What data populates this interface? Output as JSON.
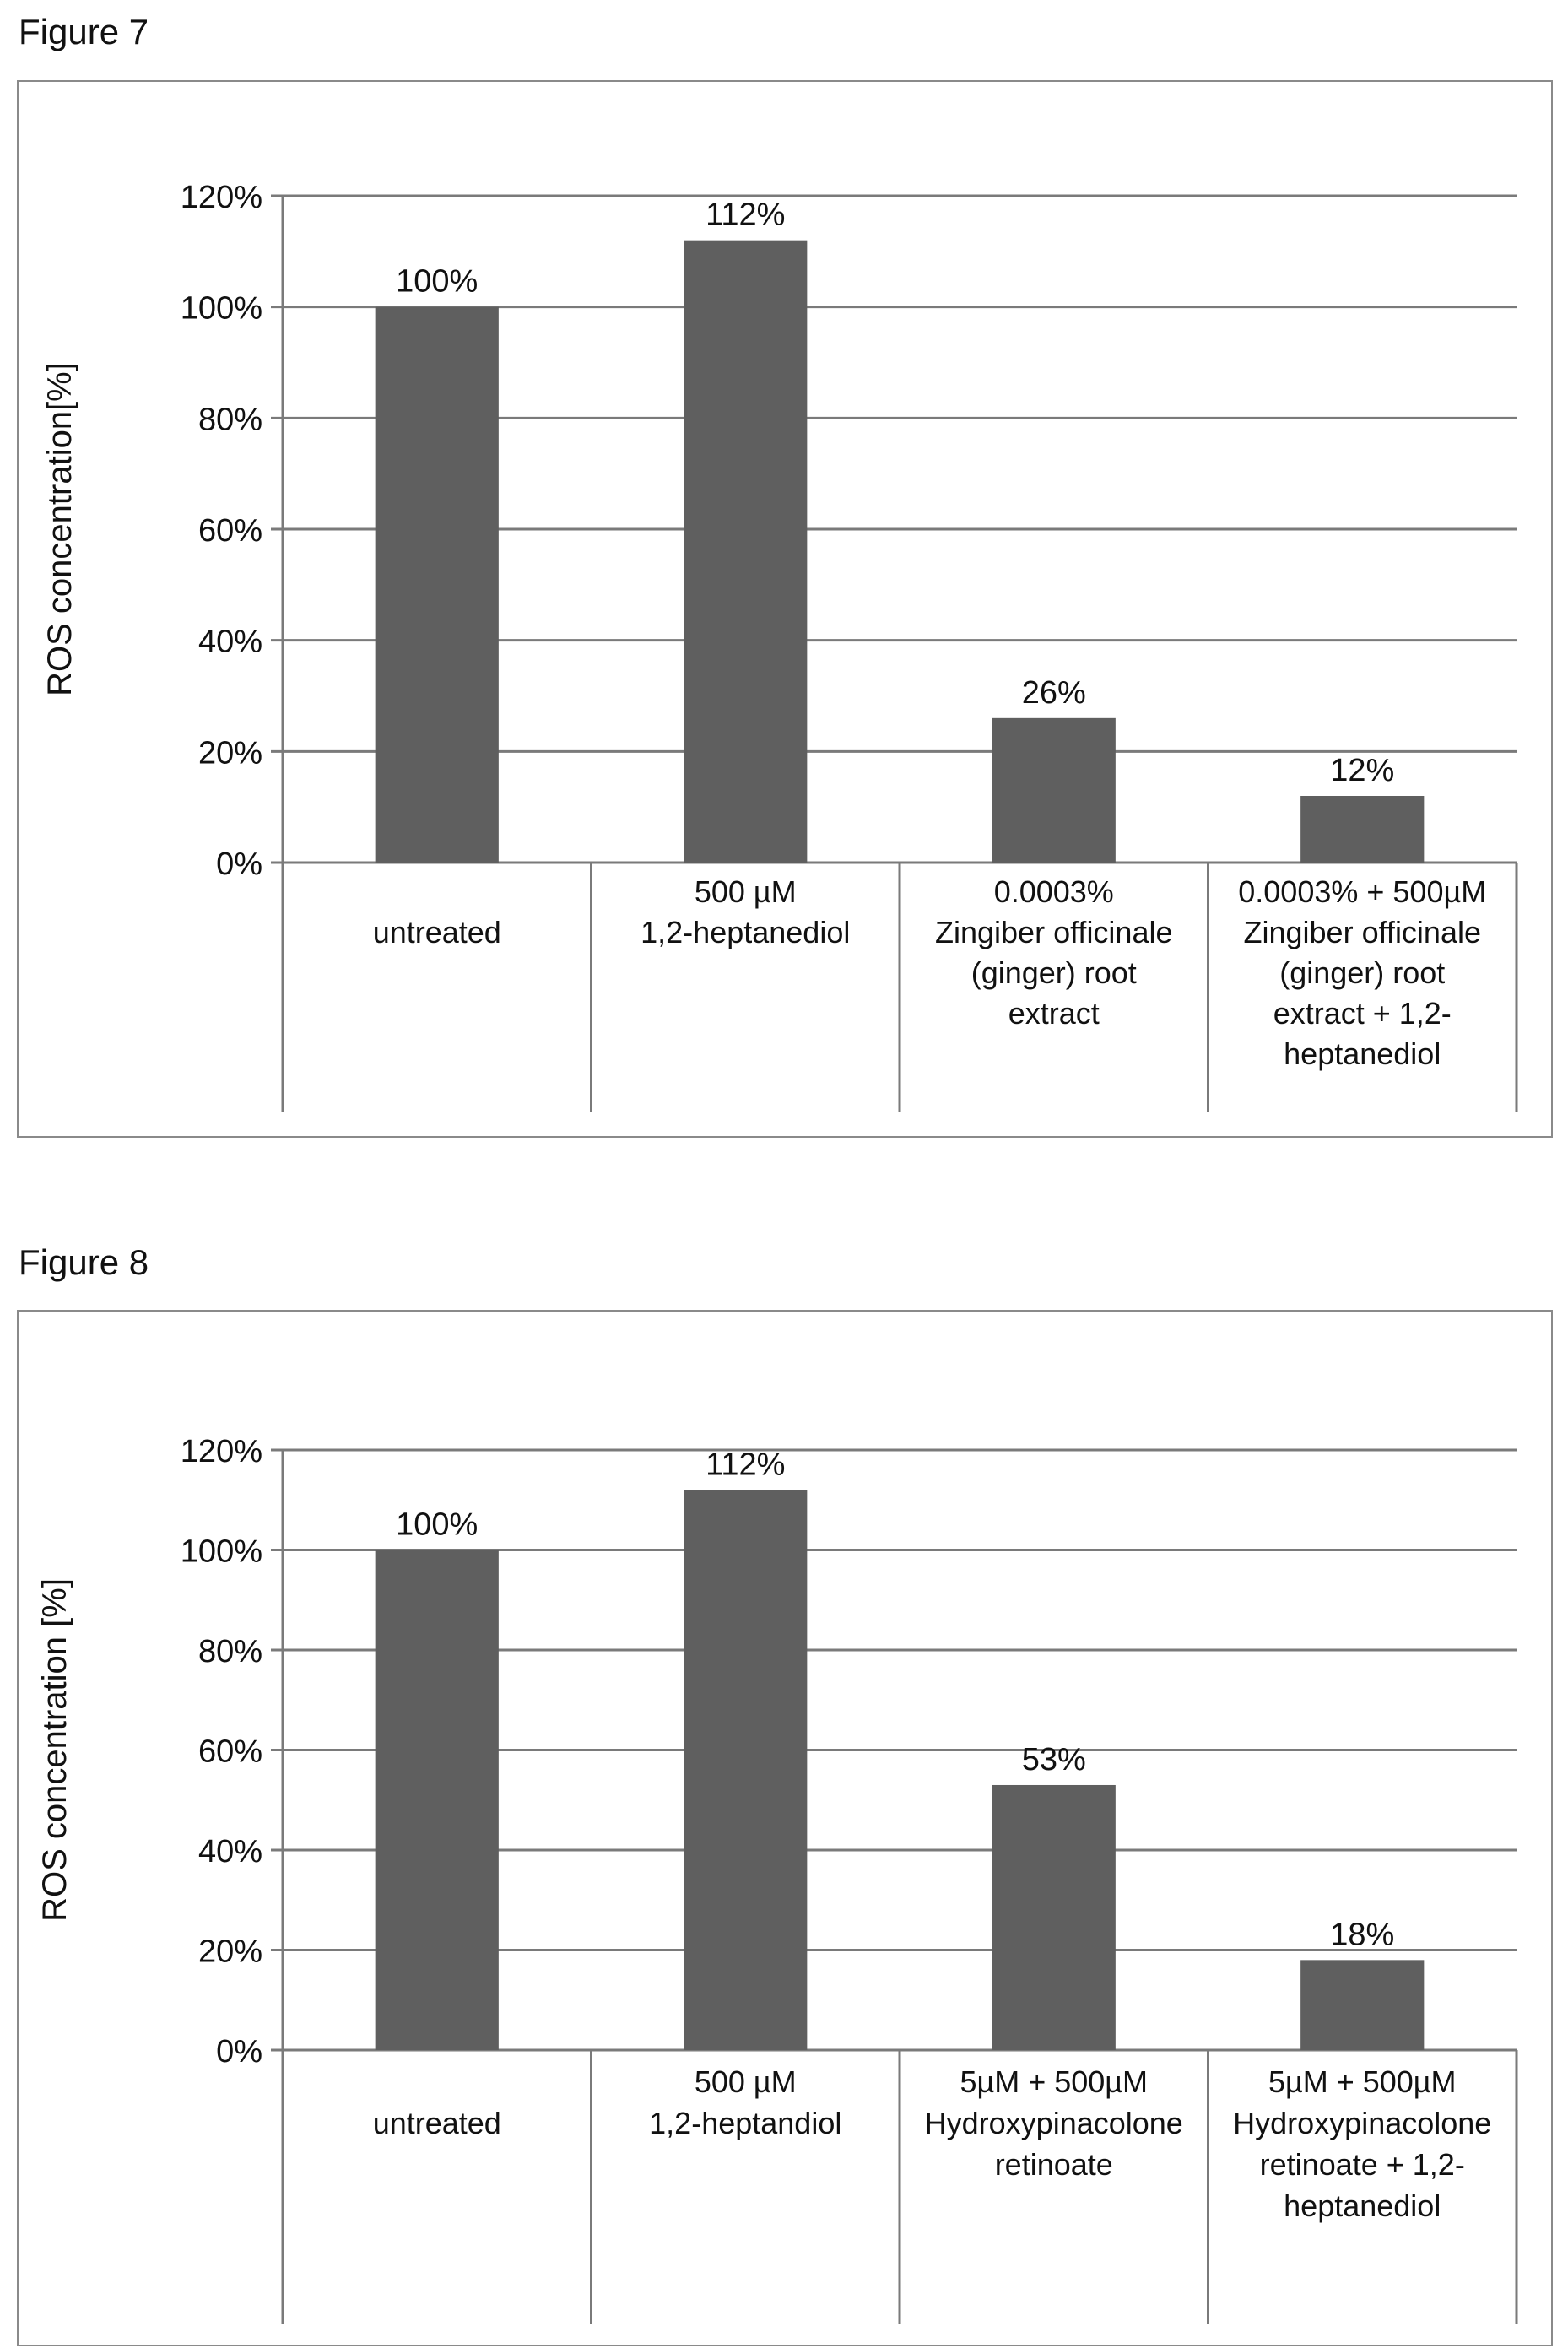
{
  "figures": [
    {
      "label": "Figure 7",
      "chart_data": {
        "type": "bar",
        "ylabel": "ROS concentration[%]",
        "ylim": [
          0,
          120
        ],
        "yticks": [
          0,
          20,
          40,
          60,
          80,
          100,
          120
        ],
        "ytick_labels": [
          "0%",
          "20%",
          "40%",
          "60%",
          "80%",
          "100%",
          "120%"
        ],
        "grid": true,
        "bar_color": "#5f5f5f",
        "categories": [
          [
            "",
            "untreated"
          ],
          [
            "500 µM",
            "1,2-heptanediol"
          ],
          [
            "0.0003%",
            "Zingiber officinale",
            "(ginger) root",
            "extract"
          ],
          [
            "0.0003% + 500µM",
            "Zingiber officinale",
            "(ginger) root",
            "extract + 1,2-",
            "heptanediol"
          ]
        ],
        "values": [
          100,
          112,
          26,
          12
        ],
        "data_labels": [
          "100%",
          "112%",
          "26%",
          "12%"
        ]
      }
    },
    {
      "label": "Figure 8",
      "chart_data": {
        "type": "bar",
        "ylabel": "ROS concentration [%]",
        "ylim": [
          0,
          120
        ],
        "yticks": [
          0,
          20,
          40,
          60,
          80,
          100,
          120
        ],
        "ytick_labels": [
          "0%",
          "20%",
          "40%",
          "60%",
          "80%",
          "100%",
          "120%"
        ],
        "grid": true,
        "bar_color": "#5f5f5f",
        "categories": [
          [
            "",
            "untreated"
          ],
          [
            "500 µM",
            "1,2-heptandiol"
          ],
          [
            "5µM + 500µM",
            "Hydroxypinacolone",
            "retinoate"
          ],
          [
            "5µM + 500µM",
            "Hydroxypinacolone",
            "retinoate + 1,2-",
            "heptanediol"
          ]
        ],
        "values": [
          100,
          112,
          53,
          18
        ],
        "data_labels": [
          "100%",
          "112%",
          "53%",
          "18%"
        ]
      }
    }
  ]
}
